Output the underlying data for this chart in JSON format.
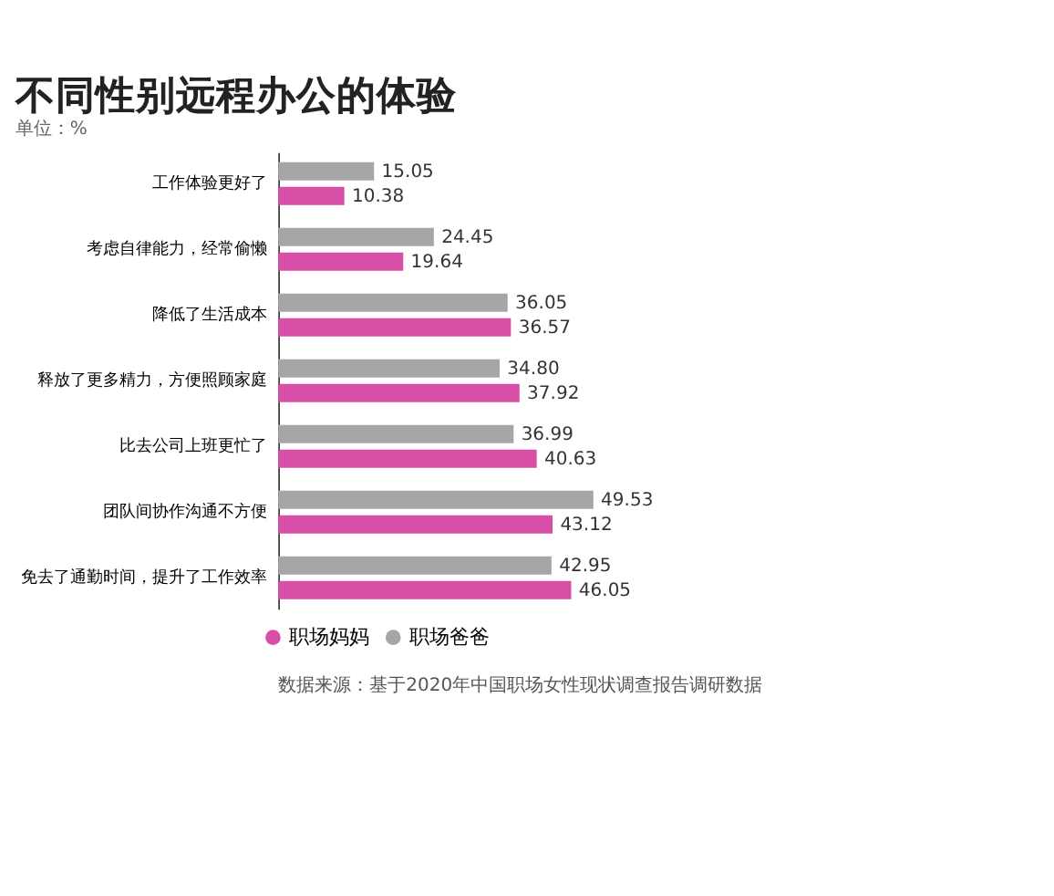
{
  "chart_data": {
    "type": "bar",
    "orientation": "horizontal",
    "title": "不同性别远程办公的体验",
    "subtitle": "单位：%",
    "categories": [
      "工作体验更好了",
      "考虑自律能力，经常偷懒",
      "降低了生活成本",
      "释放了更多精力，方便照顾家庭",
      "比去公司上班更忙了",
      "团队间协作沟通不方便",
      "免去了通勤时间，提升了工作效率"
    ],
    "series": [
      {
        "name": "职场妈妈",
        "color": "#d84fa8",
        "values": [
          10.38,
          19.64,
          36.57,
          37.92,
          40.63,
          43.12,
          46.05
        ],
        "value_labels": [
          "10.38",
          "19.64",
          "36.57",
          "37.92",
          "40.63",
          "43.12",
          "46.05"
        ]
      },
      {
        "name": "职场爸爸",
        "color": "#a6a6a6",
        "values": [
          15.05,
          24.45,
          36.05,
          34.8,
          36.99,
          49.53,
          42.95
        ],
        "value_labels": [
          "15.05",
          "24.45",
          "36.05",
          "34.80",
          "36.99",
          "49.53",
          "42.95"
        ]
      }
    ],
    "legend": "bottom",
    "annotations": [
      "数据来源：基于2020年中国职场女性现状调查报告调研数据"
    ]
  }
}
